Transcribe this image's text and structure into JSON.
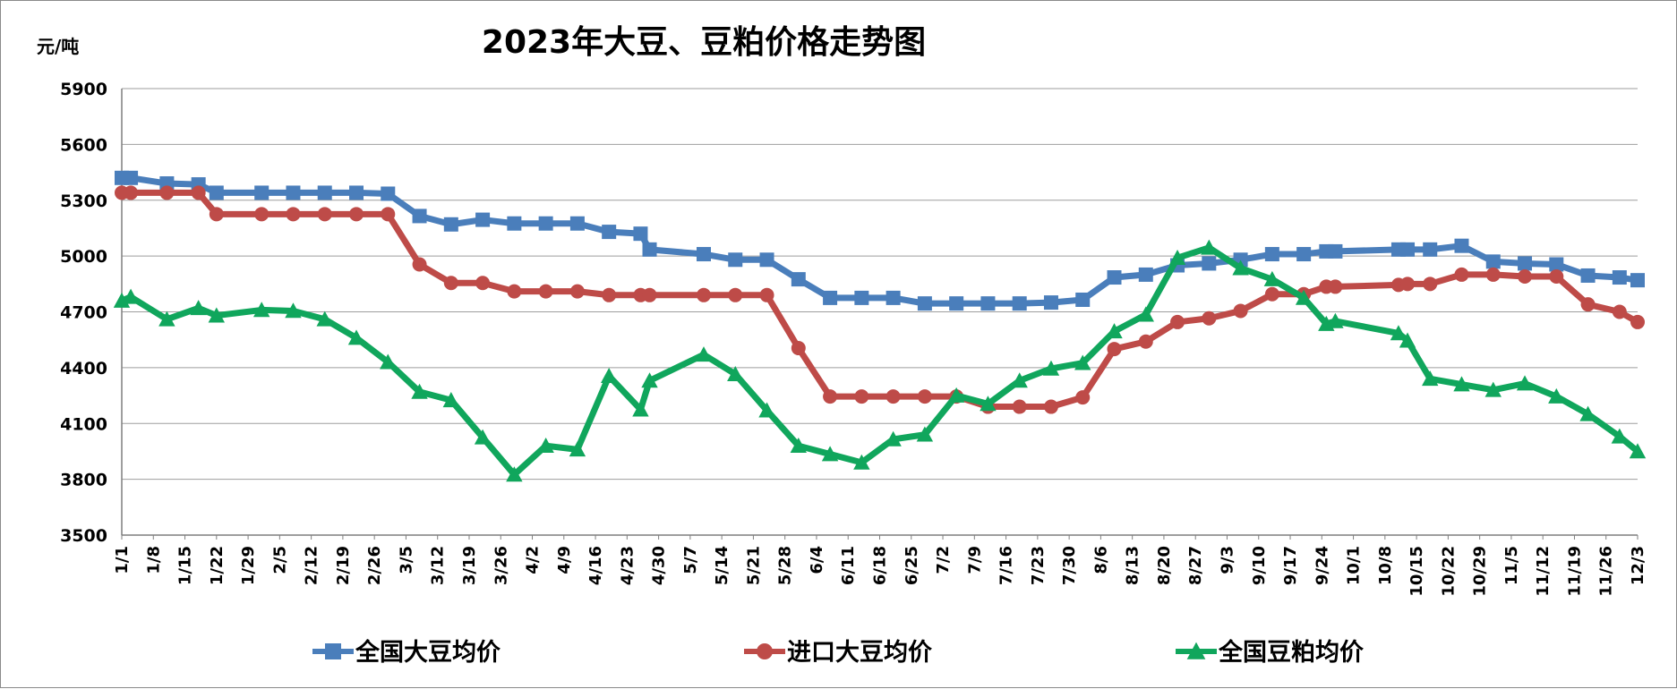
{
  "chart_data": {
    "type": "line",
    "title": "2023年大豆、豆粕价格走势图",
    "y_unit": "元/吨",
    "ylim": [
      3500,
      5900
    ],
    "yticks": [
      3500,
      3800,
      4100,
      4400,
      4700,
      5000,
      5300,
      5600,
      5900
    ],
    "grid": "horizontal",
    "legend_position": "bottom",
    "x_tick_labels": [
      "1/1",
      "1/8",
      "1/15",
      "1/22",
      "1/29",
      "2/5",
      "2/12",
      "2/19",
      "2/26",
      "3/5",
      "3/12",
      "3/19",
      "3/26",
      "4/2",
      "4/9",
      "4/16",
      "4/23",
      "4/30",
      "5/7",
      "5/14",
      "5/21",
      "5/28",
      "6/4",
      "6/11",
      "6/18",
      "6/25",
      "7/2",
      "7/9",
      "7/16",
      "7/23",
      "7/30",
      "8/6",
      "8/13",
      "8/20",
      "8/27",
      "9/3",
      "9/10",
      "9/17",
      "9/24",
      "10/1",
      "10/8",
      "10/15",
      "10/22",
      "10/29",
      "11/5",
      "11/12",
      "11/19",
      "11/26",
      "12/3"
    ],
    "x_range": [
      1,
      337
    ],
    "x": [
      1,
      3,
      11,
      18,
      22,
      32,
      39,
      46,
      53,
      60,
      67,
      74,
      81,
      88,
      95,
      102,
      109,
      116,
      118,
      130,
      137,
      144,
      151,
      158,
      165,
      172,
      179,
      186,
      193,
      200,
      207,
      214,
      221,
      228,
      235,
      242,
      249,
      256,
      263,
      268,
      270,
      284,
      286,
      291,
      298,
      305,
      312,
      319,
      326,
      333,
      337
    ],
    "series": [
      {
        "name": "全国大豆均价",
        "color": "#4a7ebb",
        "marker": "square",
        "values": [
          5420,
          5420,
          5390,
          5385,
          5340,
          5340,
          5340,
          5340,
          5340,
          5335,
          5215,
          5170,
          5195,
          5175,
          5175,
          5175,
          5130,
          5120,
          5035,
          5010,
          4980,
          4980,
          4875,
          4775,
          4775,
          4775,
          4745,
          4745,
          4745,
          4745,
          4750,
          4765,
          4885,
          4900,
          4950,
          4960,
          4980,
          5010,
          5010,
          5025,
          5025,
          5035,
          5035,
          5035,
          5055,
          4970,
          4960,
          4955,
          4895,
          4885,
          4870
        ]
      },
      {
        "name": "进口大豆均价",
        "color": "#be4b48",
        "marker": "circle",
        "values": [
          5340,
          5340,
          5340,
          5340,
          5225,
          5225,
          5225,
          5225,
          5225,
          5225,
          4955,
          4855,
          4855,
          4810,
          4810,
          4810,
          4790,
          4790,
          4790,
          4790,
          4790,
          4790,
          4505,
          4245,
          4245,
          4245,
          4245,
          4245,
          4190,
          4190,
          4190,
          4240,
          4500,
          4540,
          4645,
          4665,
          4705,
          4795,
          4795,
          4835,
          4835,
          4845,
          4850,
          4850,
          4900,
          4900,
          4890,
          4890,
          4740,
          4700,
          4645
        ]
      },
      {
        "name": "全国豆粕均价",
        "color": "#10a65c",
        "marker": "triangle",
        "values": [
          4760,
          4780,
          4660,
          4720,
          4680,
          4710,
          4705,
          4660,
          4560,
          4430,
          4270,
          4225,
          4025,
          3825,
          3980,
          3960,
          4355,
          4175,
          4330,
          4470,
          4365,
          4170,
          3980,
          3935,
          3890,
          4015,
          4040,
          4250,
          4205,
          4330,
          4395,
          4425,
          4595,
          4685,
          4990,
          5045,
          4935,
          4875,
          4775,
          4635,
          4650,
          4585,
          4545,
          4340,
          4310,
          4280,
          4315,
          4245,
          4150,
          4030,
          3950
        ]
      }
    ]
  }
}
